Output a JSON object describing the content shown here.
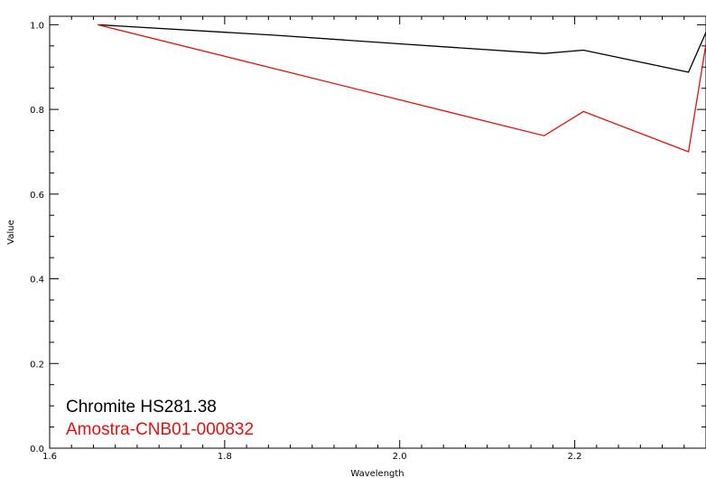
{
  "chart_data": {
    "type": "line",
    "title": "",
    "xlabel": "Wavelength",
    "ylabel": "Value",
    "xlim": [
      1.6,
      2.35
    ],
    "ylim": [
      0.0,
      1.02
    ],
    "x_ticks": [
      "1.6",
      "1.8",
      "2.0",
      "2.2"
    ],
    "y_ticks": [
      "0.0",
      "0.2",
      "0.4",
      "0.6",
      "0.8",
      "1.0"
    ],
    "grid": false,
    "legend_position": "bottom-left",
    "series": [
      {
        "name": "Chromite HS281.38",
        "color": "#000000",
        "x": [
          1.655,
          1.86,
          2.0,
          2.165,
          2.21,
          2.33,
          2.35
        ],
        "y": [
          1.0,
          0.975,
          0.955,
          0.932,
          0.94,
          0.888,
          0.982
        ]
      },
      {
        "name": "Amostra-CNB01-000832",
        "color": "#dd1111",
        "x": [
          1.655,
          2.165,
          2.21,
          2.33,
          2.35
        ],
        "y": [
          1.0,
          0.738,
          0.795,
          0.7,
          0.955
        ]
      }
    ]
  }
}
